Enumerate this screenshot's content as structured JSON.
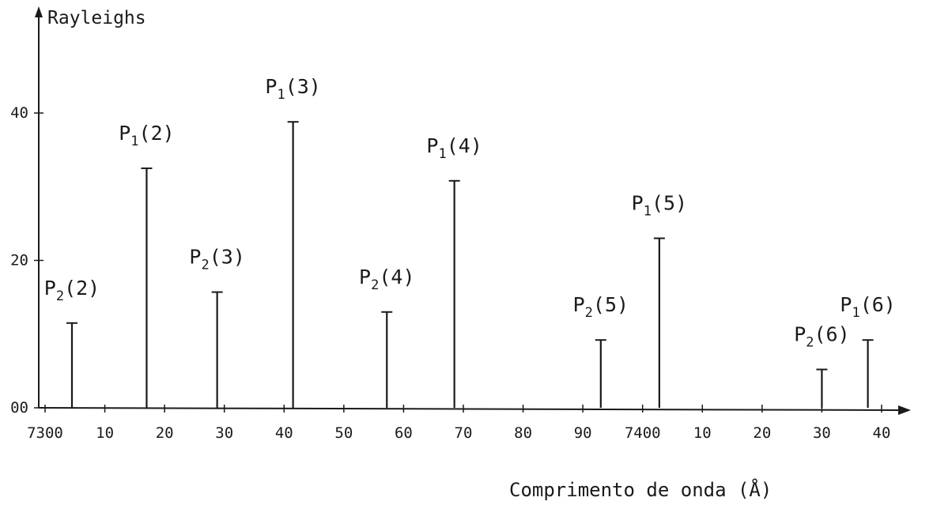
{
  "chart_data": {
    "type": "bar",
    "title": "",
    "ylabel": "Rayleighs",
    "xlabel": "Comprimento de onda (Å)",
    "xlim": [
      7300,
      7440
    ],
    "ylim": [
      0,
      50
    ],
    "grid": false,
    "legend": "none",
    "x_ticks": [
      {
        "value": 7300,
        "label": "7300"
      },
      {
        "value": 7310,
        "label": "10"
      },
      {
        "value": 7320,
        "label": "20"
      },
      {
        "value": 7330,
        "label": "30"
      },
      {
        "value": 7340,
        "label": "40"
      },
      {
        "value": 7350,
        "label": "50"
      },
      {
        "value": 7360,
        "label": "60"
      },
      {
        "value": 7370,
        "label": "70"
      },
      {
        "value": 7380,
        "label": "80"
      },
      {
        "value": 7390,
        "label": "90"
      },
      {
        "value": 7400,
        "label": "7400"
      },
      {
        "value": 7410,
        "label": "10"
      },
      {
        "value": 7420,
        "label": "20"
      },
      {
        "value": 7430,
        "label": "30"
      },
      {
        "value": 7440,
        "label": "40"
      }
    ],
    "y_ticks": [
      {
        "value": 0,
        "label": "00"
      },
      {
        "value": 20,
        "label": "20"
      },
      {
        "value": 40,
        "label": "40"
      }
    ],
    "lines": [
      {
        "label": "P",
        "sub": "2",
        "suffix": "(2)",
        "x": 7304.5,
        "y": 11.5
      },
      {
        "label": "P",
        "sub": "1",
        "suffix": "(2)",
        "x": 7317.0,
        "y": 32.5
      },
      {
        "label": "P",
        "sub": "2",
        "suffix": "(3)",
        "x": 7328.8,
        "y": 15.7
      },
      {
        "label": "P",
        "sub": "1",
        "suffix": "(3)",
        "x": 7341.5,
        "y": 38.8
      },
      {
        "label": "P",
        "sub": "2",
        "suffix": "(4)",
        "x": 7357.2,
        "y": 13.0
      },
      {
        "label": "P",
        "sub": "1",
        "suffix": "(4)",
        "x": 7368.5,
        "y": 30.8
      },
      {
        "label": "P",
        "sub": "2",
        "suffix": "(5)",
        "x": 7393.0,
        "y": 9.2
      },
      {
        "label": "P",
        "sub": "1",
        "suffix": "(5)",
        "x": 7402.8,
        "y": 23.0
      },
      {
        "label": "P",
        "sub": "2",
        "suffix": "(6)",
        "x": 7430.0,
        "y": 5.2
      },
      {
        "label": "P",
        "sub": "1",
        "suffix": "(6)",
        "x": 7437.7,
        "y": 9.2
      }
    ]
  }
}
